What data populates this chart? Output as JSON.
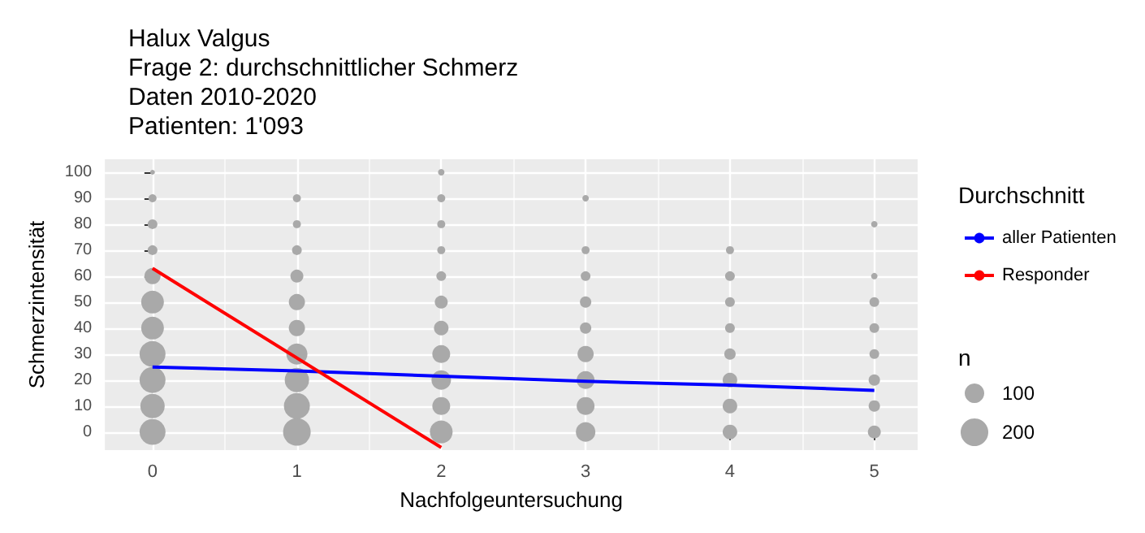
{
  "chart_data": {
    "type": "bubble",
    "title": "Halux Valgus\nFrage 2: durchschnittlicher Schmerz\nDaten 2010-2020\nPatienten: 1'093",
    "xlabel": "Nachfolgeuntersuchung",
    "ylabel": "Schmerzintensität",
    "legend_title": "Durchschnitt",
    "annotations": [
      "n"
    ],
    "size_legend": [
      100,
      200
    ],
    "xlim": [
      -0.33,
      5.3
    ],
    "xticks": [
      0,
      1,
      2,
      3,
      4,
      5
    ],
    "ylim": [
      -7,
      105
    ],
    "yticks": [
      0,
      10,
      20,
      30,
      40,
      50,
      60,
      70,
      80,
      90,
      100
    ],
    "grid": true,
    "legend": "right",
    "series": [
      {
        "type": "bubble",
        "color": "#a9a9a9",
        "x": [
          0,
          0,
          0,
          0,
          0,
          0,
          0,
          0,
          0,
          0,
          0,
          1,
          1,
          1,
          1,
          1,
          1,
          1,
          1,
          1,
          1,
          2,
          2,
          2,
          2,
          2,
          2,
          2,
          2,
          2,
          2,
          2,
          3,
          3,
          3,
          3,
          3,
          3,
          3,
          3,
          3,
          4,
          4,
          4,
          4,
          4,
          4,
          4,
          4,
          5,
          5,
          5,
          5,
          5,
          5,
          5,
          5
        ],
        "values": [
          0,
          10,
          20,
          30,
          40,
          50,
          60,
          70,
          80,
          90,
          100,
          0,
          10,
          20,
          30,
          40,
          50,
          60,
          70,
          80,
          90,
          0,
          10,
          20,
          30,
          40,
          50,
          60,
          70,
          80,
          90,
          100,
          0,
          10,
          20,
          30,
          40,
          50,
          60,
          70,
          90,
          0,
          10,
          20,
          30,
          40,
          50,
          60,
          70,
          0,
          10,
          20,
          30,
          40,
          50,
          60,
          80
        ],
        "sizes": [
          177,
          156,
          177,
          177,
          136,
          136,
          69,
          25,
          25,
          17,
          6,
          200,
          177,
          156,
          117,
          69,
          69,
          44,
          25,
          17,
          17,
          136,
          84,
          100,
          84,
          56,
          44,
          25,
          17,
          17,
          17,
          11,
          100,
          84,
          84,
          69,
          34,
          34,
          25,
          17,
          11,
          56,
          56,
          56,
          34,
          25,
          25,
          25,
          17,
          44,
          34,
          34,
          25,
          25,
          25,
          11,
          11
        ]
      },
      {
        "type": "line",
        "name": "aller Patienten",
        "color": "#0000ff",
        "marker": "none",
        "x": [
          0,
          1,
          2,
          3,
          4,
          5
        ],
        "values": [
          25,
          23.5,
          21.5,
          19.5,
          18,
          16
        ]
      },
      {
        "type": "line",
        "name": "Responder",
        "color": "#ff0000",
        "marker": "none",
        "x": [
          0,
          2
        ],
        "values": [
          63,
          -6
        ]
      }
    ]
  }
}
